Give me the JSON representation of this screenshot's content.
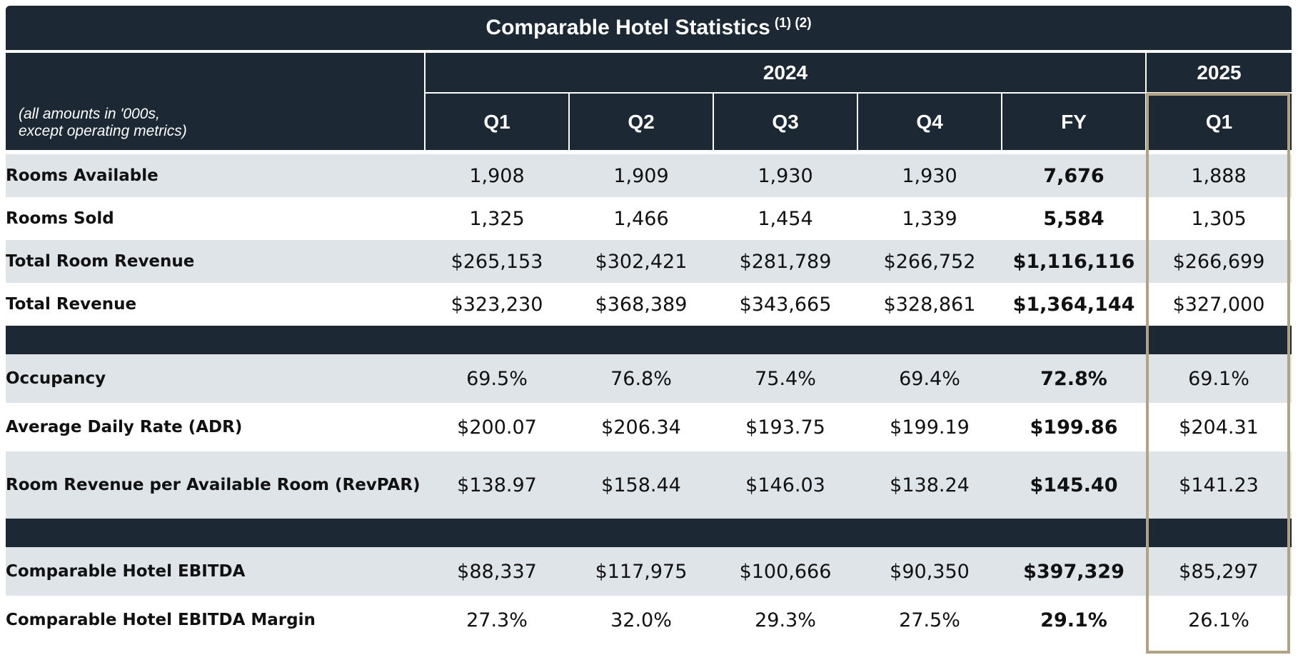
{
  "title": "Comparable Hotel Statistics",
  "title_footnotes": "(1) (2)",
  "header": {
    "note_line1": "(all amounts in '000s,",
    "note_line2": "except operating metrics)",
    "year_2024": "2024",
    "year_2025": "2025",
    "columns": [
      "Q1",
      "Q2",
      "Q3",
      "Q4",
      "FY",
      "Q1"
    ]
  },
  "rows": [
    {
      "label": "Rooms Available",
      "values": [
        "1,908",
        "1,909",
        "1,930",
        "1,930",
        "7,676",
        "1,888"
      ]
    },
    {
      "label": "Rooms Sold",
      "values": [
        "1,325",
        "1,466",
        "1,454",
        "1,339",
        "5,584",
        "1,305"
      ]
    },
    {
      "label": "Total Room Revenue",
      "values": [
        "$265,153",
        "$302,421",
        "$281,789",
        "$266,752",
        "$1,116,116",
        "$266,699"
      ]
    },
    {
      "label": "Total Revenue",
      "values": [
        "$323,230",
        "$368,389",
        "$343,665",
        "$328,861",
        "$1,364,144",
        "$327,000"
      ]
    },
    {
      "label": "Occupancy",
      "values": [
        "69.5%",
        "76.8%",
        "75.4%",
        "69.4%",
        "72.8%",
        "69.1%"
      ]
    },
    {
      "label": "Average Daily Rate (ADR)",
      "values": [
        "$200.07",
        "$206.34",
        "$193.75",
        "$199.19",
        "$199.86",
        "$204.31"
      ]
    },
    {
      "label": "Room Revenue per Available Room (RevPAR)",
      "values": [
        "$138.97",
        "$158.44",
        "$146.03",
        "$138.24",
        "$145.40",
        "$141.23"
      ]
    },
    {
      "label": "Comparable Hotel EBITDA",
      "values": [
        "$88,337",
        "$117,975",
        "$100,666",
        "$90,350",
        "$397,329",
        "$85,297"
      ]
    },
    {
      "label": "Comparable Hotel EBITDA Margin",
      "values": [
        "27.3%",
        "32.0%",
        "29.3%",
        "27.5%",
        "29.1%",
        "26.1%"
      ]
    }
  ],
  "colors": {
    "header_bg": "#1c2935",
    "shade_row": "#dfe4e8",
    "highlight_border": "#b1a383"
  }
}
